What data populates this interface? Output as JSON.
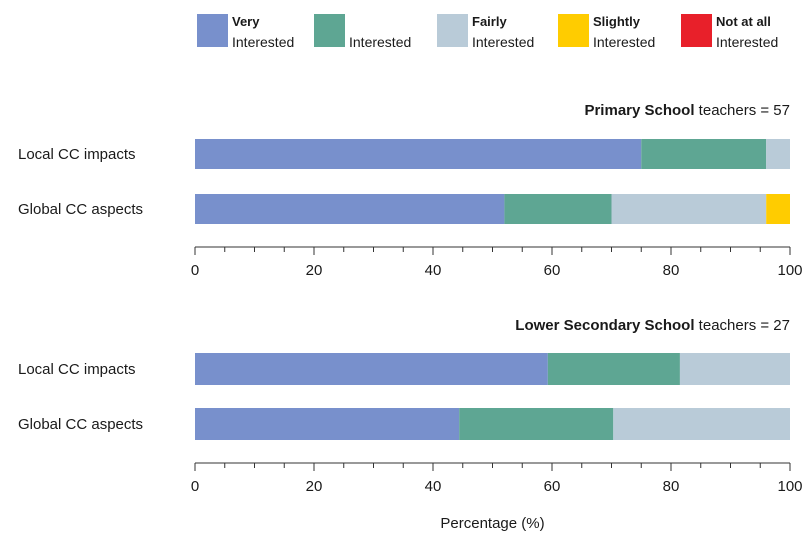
{
  "legend": [
    {
      "line1": "Very",
      "line2": "Interested",
      "color": "#7890cc"
    },
    {
      "line1": "",
      "line2": "Interested",
      "color": "#5ea693"
    },
    {
      "line1": "Fairly",
      "line2": "Interested",
      "color": "#b9cbd8"
    },
    {
      "line1": "Slightly",
      "line2": "Interested",
      "color": "#ffcc00"
    },
    {
      "line1": "Not at all",
      "line2": "Interested",
      "color": "#e8202a"
    }
  ],
  "chart_data": [
    {
      "type": "bar",
      "stacked": true,
      "orientation": "horizontal",
      "title_bold": "Primary School",
      "title_rest": " teachers = 57",
      "categories": [
        "Local CC impacts",
        "Global CC aspects"
      ],
      "series": [
        {
          "name": "Very Interested",
          "values": [
            75,
            52
          ]
        },
        {
          "name": "Interested",
          "values": [
            21,
            18
          ]
        },
        {
          "name": "Fairly Interested",
          "values": [
            4,
            26
          ]
        },
        {
          "name": "Slightly Interested",
          "values": [
            0,
            4
          ]
        },
        {
          "name": "Not at all Interested",
          "values": [
            0,
            0
          ]
        }
      ],
      "xlim": [
        0,
        100
      ],
      "xticks": [
        "0",
        "20",
        "40",
        "60",
        "80",
        "100"
      ],
      "xlabel": ""
    },
    {
      "type": "bar",
      "stacked": true,
      "orientation": "horizontal",
      "title_bold": "Lower Secondary School",
      "title_rest": " teachers = 27",
      "categories": [
        "Local CC impacts",
        "Global CC aspects"
      ],
      "series": [
        {
          "name": "Very Interested",
          "values": [
            59.3,
            44.4
          ]
        },
        {
          "name": "Interested",
          "values": [
            22.2,
            25.9
          ]
        },
        {
          "name": "Fairly Interested",
          "values": [
            18.5,
            29.7
          ]
        },
        {
          "name": "Slightly Interested",
          "values": [
            0,
            0
          ]
        },
        {
          "name": "Not at all Interested",
          "values": [
            0,
            0
          ]
        }
      ],
      "xlim": [
        0,
        100
      ],
      "xticks": [
        "0",
        "20",
        "40",
        "60",
        "80",
        "100"
      ],
      "xlabel": "Percentage (%)"
    }
  ]
}
